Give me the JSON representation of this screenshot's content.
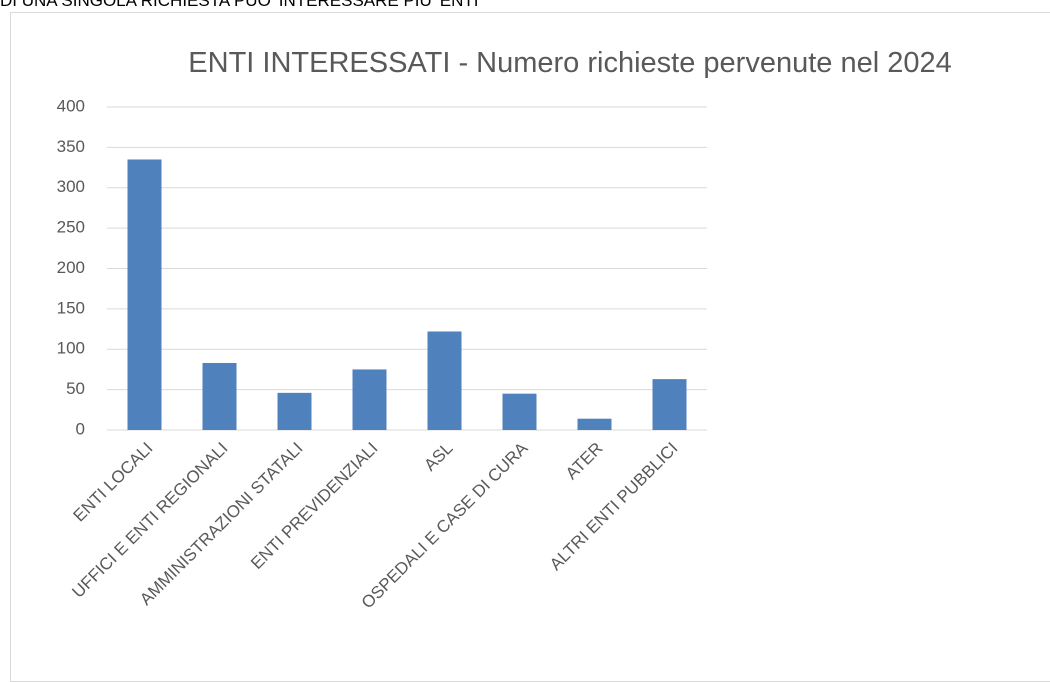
{
  "note": "DI UNA SINGOLA RICHIESTA PUO' INTERESSARE PIU' ENTI",
  "chart_data": {
    "type": "bar",
    "title": "ENTI INTERESSATI - Numero richieste pervenute nel 2024",
    "categories": [
      "ENTI LOCALI",
      "UFFICI E ENTI  REGIONALI",
      "AMMINISTRAZIONI STATALI",
      "ENTI PREVIDENZIALI",
      "ASL",
      "OSPEDALI E CASE DI CURA",
      "ATER",
      "ALTRI ENTI PUBBLICI"
    ],
    "values": [
      335,
      83,
      46,
      75,
      122,
      45,
      14,
      63
    ],
    "color": "#4f81bd",
    "ylim": [
      0,
      400
    ],
    "yticks": [
      0,
      50,
      100,
      150,
      200,
      250,
      300,
      350,
      400
    ],
    "grid": true
  }
}
